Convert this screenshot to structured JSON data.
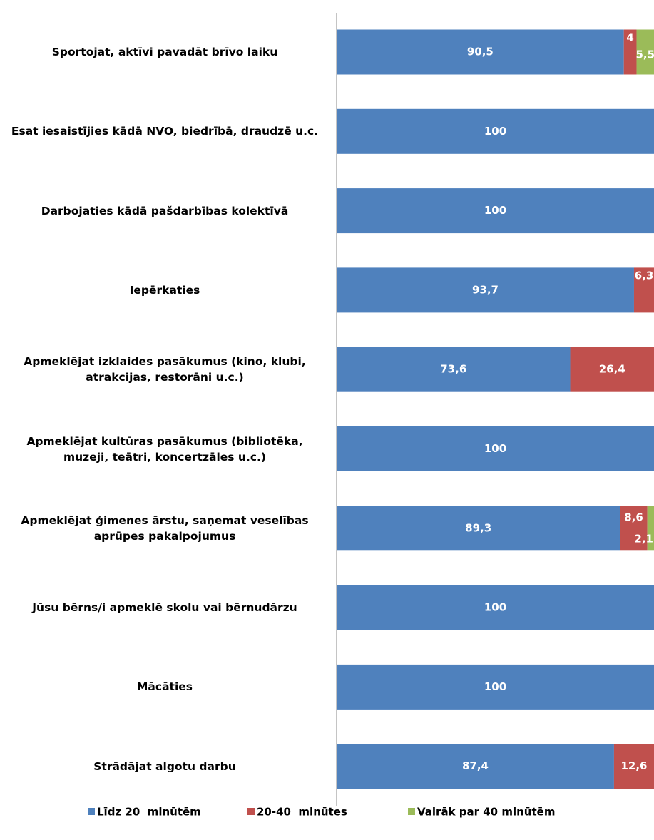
{
  "chart_data": {
    "type": "stacked-bar-horizontal",
    "categories": [
      "Sportojat, aktīvi pavadāt brīvo laiku",
      "Esat iesaistījies kādā NVO, biedrībā, draudzē u.c.",
      "Darbojaties kādā pašdarbības kolektīvā",
      "Iepērkaties",
      "Apmeklējat izklaides pasākumus (kino, klubi, atrakcijas, restorāni u.c.)",
      "Apmeklējat kultūras pasākumus (bibliotēka, muzeji, teātri, koncertzāles u.c.)",
      "Apmeklējat ģimenes ārstu, saņemat veselības aprūpes pakalpojumus",
      "Jūsu bērns/i apmeklē skolu vai bērnudārzu",
      "Mācāties",
      "Strādājat algotu darbu"
    ],
    "series": [
      {
        "name": "Līdz 20  minūtēm",
        "color": "#4f81bd",
        "values": [
          90.5,
          100,
          100,
          93.7,
          73.6,
          100,
          89.3,
          100,
          100,
          87.4
        ],
        "value_labels": [
          "90,5",
          "100",
          "100",
          "93,7",
          "73,6",
          "100",
          "89,3",
          "100",
          "100",
          "87,4"
        ]
      },
      {
        "name": "20-40  minūtes",
        "color": "#c0504d",
        "values": [
          4,
          null,
          null,
          6.3,
          26.4,
          null,
          8.6,
          null,
          null,
          12.6
        ],
        "value_labels": [
          "4",
          null,
          null,
          "6,3",
          "26,4",
          null,
          "8,6",
          null,
          null,
          "12,6"
        ]
      },
      {
        "name": "Vairāk par 40 minūtēm",
        "color": "#9bbb59",
        "values": [
          5.5,
          null,
          null,
          null,
          null,
          null,
          2.1,
          null,
          null,
          null
        ],
        "value_labels": [
          "5,5",
          null,
          null,
          null,
          null,
          null,
          "2,1",
          null,
          null,
          null
        ]
      }
    ],
    "xlim": [
      0,
      100
    ]
  }
}
